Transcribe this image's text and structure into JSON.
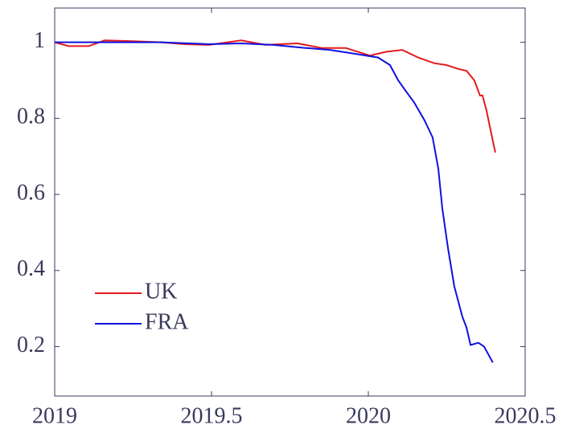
{
  "chart_data": {
    "type": "line",
    "xlim": [
      2019,
      2020.5
    ],
    "xticks": [
      2019,
      2019.5,
      2020,
      2020.5
    ],
    "ylim": [
      0.07,
      1.09
    ],
    "yticks": [
      0.2,
      0.4,
      0.6,
      0.8,
      1
    ],
    "legend": "lower left",
    "series": [
      {
        "name": "UK",
        "color": "#e41a1c",
        "x": [
          2019.0,
          2019.044,
          2019.108,
          2019.159,
          2019.249,
          2019.338,
          2019.415,
          2019.492,
          2019.595,
          2019.672,
          2019.774,
          2019.851,
          2019.928,
          2020.005,
          2020.056,
          2020.108,
          2020.159,
          2020.21,
          2020.249,
          2020.287,
          2020.313,
          2020.338,
          2020.356,
          2020.364,
          2020.377,
          2020.392,
          2020.405
        ],
        "values": [
          1.0,
          0.99,
          0.99,
          1.005,
          1.003,
          1.0,
          0.995,
          0.993,
          1.005,
          0.993,
          0.997,
          0.985,
          0.985,
          0.965,
          0.975,
          0.98,
          0.96,
          0.945,
          0.94,
          0.93,
          0.925,
          0.9,
          0.86,
          0.86,
          0.82,
          0.76,
          0.71
        ]
      },
      {
        "name": "FRA",
        "color": "#1010e0",
        "x": [
          2019.0,
          2019.338,
          2019.492,
          2019.595,
          2019.697,
          2019.8,
          2019.877,
          2019.954,
          2020.031,
          2020.069,
          2020.095,
          2020.121,
          2020.146,
          2020.179,
          2020.205,
          2020.223,
          2020.236,
          2020.254,
          2020.274,
          2020.3,
          2020.313,
          2020.326,
          2020.351,
          2020.369,
          2020.397
        ],
        "values": [
          1.0,
          1.0,
          0.995,
          0.997,
          0.993,
          0.985,
          0.98,
          0.97,
          0.96,
          0.94,
          0.9,
          0.87,
          0.842,
          0.795,
          0.75,
          0.668,
          0.563,
          0.458,
          0.358,
          0.278,
          0.25,
          0.204,
          0.21,
          0.2,
          0.158
        ]
      }
    ]
  }
}
